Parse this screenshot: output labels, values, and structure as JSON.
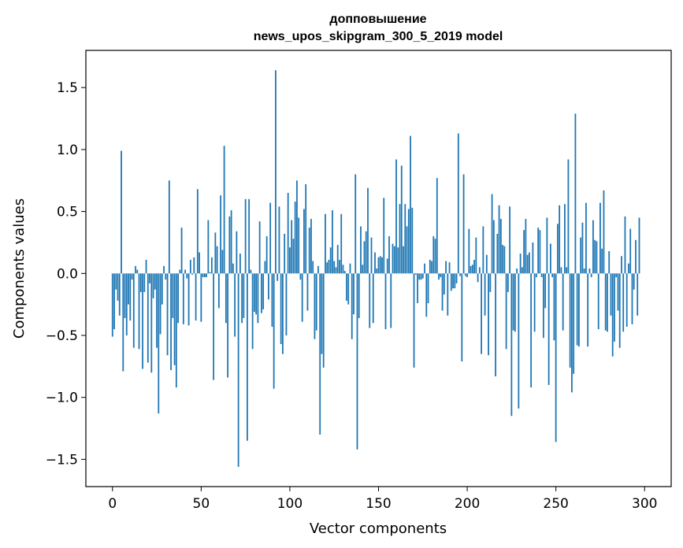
{
  "chart_data": {
    "type": "bar",
    "title_line1": "допповышение",
    "title_line2": "news_upos_skipgram_300_5_2019 model",
    "xlabel": "Vector components",
    "ylabel": "Components values",
    "xlim": [
      -15,
      315
    ],
    "ylim": [
      -1.72,
      1.8
    ],
    "x_ticks": [
      0,
      50,
      100,
      150,
      200,
      250,
      300
    ],
    "y_ticks": [
      -1.5,
      -1.0,
      -0.5,
      0.0,
      0.5,
      1.0,
      1.5
    ],
    "y_tick_labels": [
      "−1.5",
      "−1.0",
      "−0.5",
      "0.0",
      "0.5",
      "1.0",
      "1.5"
    ],
    "bar_color": "#1f77b4",
    "values": [
      -0.51,
      -0.45,
      -0.13,
      -0.22,
      -0.34,
      0.99,
      -0.79,
      -0.36,
      -0.5,
      -0.25,
      -0.38,
      -0.05,
      -0.6,
      0.06,
      0.03,
      -0.61,
      -0.15,
      -0.77,
      -0.15,
      0.11,
      -0.72,
      -0.08,
      -0.8,
      -0.2,
      -0.13,
      -0.6,
      -1.13,
      -0.49,
      -0.25,
      0.06,
      -0.05,
      -0.66,
      0.75,
      -0.78,
      -0.36,
      -0.74,
      -0.92,
      -0.4,
      0.03,
      0.37,
      -0.41,
      0.03,
      -0.04,
      -0.42,
      0.11,
      -0.01,
      0.13,
      -0.38,
      0.68,
      0.17,
      -0.39,
      -0.03,
      -0.03,
      -0.03,
      0.43,
      0.01,
      0.13,
      -0.86,
      0.33,
      0.22,
      -0.28,
      0.63,
      0.19,
      1.03,
      -0.4,
      -0.84,
      0.46,
      0.51,
      0.08,
      -0.51,
      0.34,
      -1.56,
      0.16,
      -0.4,
      -0.36,
      0.6,
      -1.35,
      0.6,
      0.03,
      -0.61,
      -0.31,
      -0.33,
      -0.4,
      0.42,
      -0.32,
      -0.29,
      0.1,
      0.3,
      -0.21,
      0.57,
      -0.43,
      -0.93,
      1.64,
      -0.06,
      0.54,
      -0.57,
      -0.65,
      0.32,
      -0.5,
      0.65,
      0.21,
      0.43,
      0.28,
      0.58,
      0.75,
      0.45,
      -0.05,
      -0.39,
      0.52,
      0.72,
      -0.3,
      0.37,
      0.44,
      0.1,
      -0.53,
      -0.46,
      0.06,
      -1.3,
      -0.65,
      -0.76,
      0.48,
      0.09,
      0.11,
      0.21,
      0.51,
      0.1,
      0.05,
      0.23,
      0.11,
      0.48,
      0.07,
      0.02,
      -0.22,
      -0.25,
      0.08,
      -0.53,
      -0.33,
      0.8,
      -1.42,
      -0.36,
      0.38,
      0.07,
      0.26,
      0.34,
      0.69,
      -0.44,
      0.29,
      -0.4,
      0.17,
      0.04,
      0.13,
      0.14,
      0.13,
      0.61,
      -0.45,
      0.12,
      0.3,
      -0.44,
      0.24,
      0.22,
      0.92,
      0.21,
      0.56,
      0.87,
      0.22,
      0.56,
      0.38,
      0.52,
      1.11,
      0.53,
      -0.76,
      -0.01,
      -0.24,
      -0.05,
      -0.05,
      -0.04,
      0.08,
      -0.35,
      -0.24,
      0.11,
      0.1,
      0.3,
      0.28,
      0.77,
      -0.05,
      -0.03,
      -0.3,
      -0.17,
      0.1,
      -0.34,
      0.09,
      -0.14,
      -0.12,
      -0.12,
      -0.08,
      1.13,
      -0.02,
      -0.71,
      0.8,
      -0.02,
      -0.03,
      0.36,
      0.06,
      0.07,
      0.11,
      0.29,
      -0.07,
      0.05,
      -0.65,
      0.38,
      -0.34,
      0.15,
      -0.66,
      -0.15,
      0.64,
      0.43,
      -0.83,
      0.32,
      0.55,
      0.44,
      0.23,
      0.22,
      -0.61,
      -0.15,
      0.54,
      -1.15,
      -0.46,
      -0.47,
      0.04,
      -1.09,
      0.16,
      0.05,
      0.35,
      0.44,
      0.15,
      0.17,
      -0.92,
      0.25,
      -0.47,
      -0.03,
      0.37,
      0.35,
      -0.03,
      -0.52,
      -0.28,
      0.45,
      -0.9,
      0.24,
      -0.03,
      -0.54,
      -1.36,
      0.4,
      0.55,
      0.05,
      -0.46,
      0.56,
      0.05,
      0.92,
      -0.76,
      -0.96,
      -0.81,
      1.29,
      -0.58,
      -0.59,
      0.29,
      0.41,
      0.04,
      0.57,
      -0.59,
      0.04,
      -0.03,
      0.43,
      0.27,
      0.26,
      -0.45,
      0.57,
      0.2,
      0.67,
      -0.46,
      -0.47,
      0.18,
      -0.34,
      -0.67,
      -0.55,
      -0.03,
      -0.3,
      -0.6,
      0.14,
      -0.47,
      0.46,
      -0.43,
      0.08,
      0.36,
      -0.41,
      -0.13,
      0.27,
      -0.34,
      0.45
    ]
  }
}
